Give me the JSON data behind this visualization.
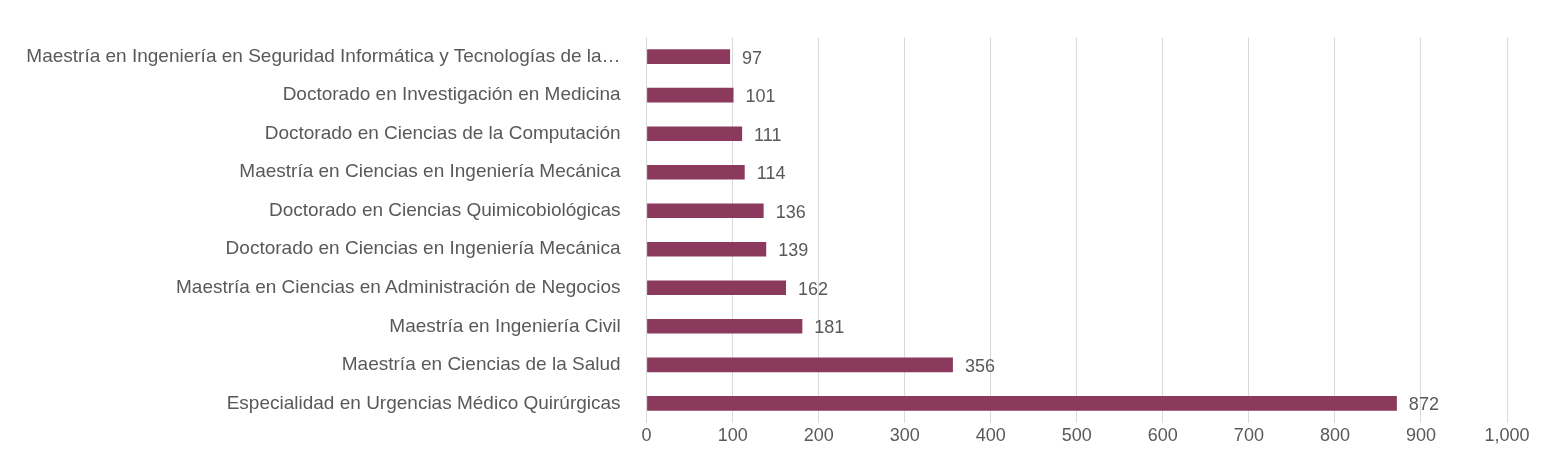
{
  "chart_data": {
    "type": "bar",
    "orientation": "horizontal",
    "categories": [
      "Maestría en Ingeniería en Seguridad Informática y Tecnologías de la…",
      "Doctorado en Investigación en Medicina",
      "Doctorado en Ciencias de la Computación",
      "Maestría en Ciencias en Ingeniería Mecánica",
      "Doctorado en Ciencias Quimicobiológicas",
      "Doctorado en Ciencias en Ingeniería Mecánica",
      "Maestría en Ciencias en Administración de Negocios",
      "Maestría en Ingeniería Civil",
      "Maestría en Ciencias de la Salud",
      "Especialidad en Urgencias Médico Quirúrgicas"
    ],
    "values": [
      97,
      101,
      111,
      114,
      136,
      139,
      162,
      181,
      356,
      872
    ],
    "color": "#8b3a5e",
    "xlim": [
      0,
      1000
    ],
    "xticks": [
      0,
      100,
      200,
      300,
      400,
      500,
      600,
      700,
      800,
      900,
      {
        "value": 1000,
        "label": "1,000"
      }
    ],
    "grid": "x",
    "data_labels": true,
    "legend": false
  }
}
